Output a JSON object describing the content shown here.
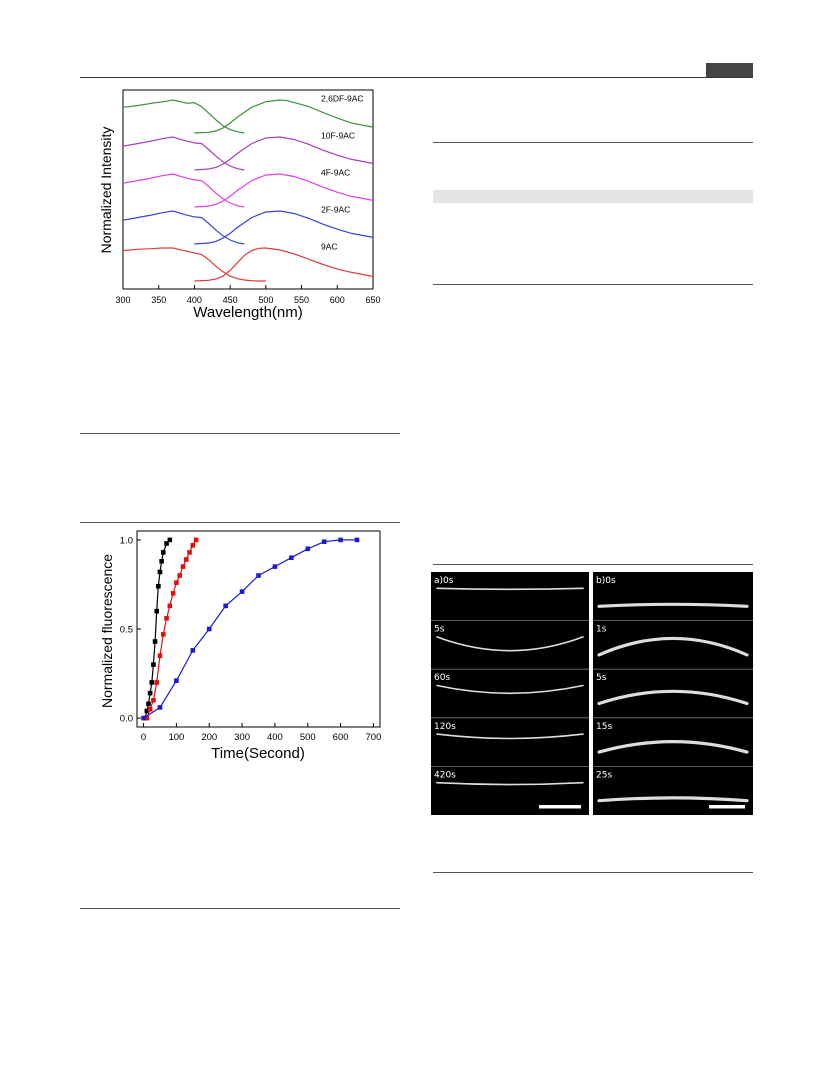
{
  "figure_spectra": {
    "chart_data": {
      "type": "line",
      "xlabel": "Wavelength(nm)",
      "ylabel": "Normalized Intensity",
      "xlim": [
        300,
        650
      ],
      "xticks": [
        300,
        350,
        400,
        450,
        500,
        550,
        600,
        650
      ],
      "grid": false,
      "series": [
        {
          "name": "2,6DF-9AC",
          "color": "#3a8f3a",
          "offset": 4,
          "absorption": {
            "x": [
              300,
              320,
              340,
              360,
              370,
              380,
              390,
              400,
              410,
              420,
              430,
              440,
              450,
              460,
              470
            ],
            "y": [
              0.78,
              0.83,
              0.9,
              0.96,
              1.0,
              0.95,
              0.9,
              0.92,
              0.8,
              0.6,
              0.4,
              0.22,
              0.1,
              0.04,
              0.0
            ]
          },
          "emission": {
            "x": [
              400,
              420,
              430,
              440,
              450,
              460,
              480,
              500,
              520,
              530,
              540,
              560,
              580,
              600,
              620,
              650
            ],
            "y": [
              0.0,
              0.02,
              0.06,
              0.15,
              0.3,
              0.48,
              0.78,
              0.95,
              1.0,
              0.98,
              0.92,
              0.8,
              0.62,
              0.45,
              0.3,
              0.18
            ]
          }
        },
        {
          "name": "10F-9AC",
          "color": "#a63fbf",
          "offset": 3,
          "absorption": {
            "x": [
              300,
              320,
              340,
              355,
              370,
              385,
              400,
              410,
              420,
              430,
              440,
              450,
              460,
              470
            ],
            "y": [
              0.72,
              0.8,
              0.88,
              0.95,
              1.0,
              0.9,
              0.82,
              0.8,
              0.62,
              0.42,
              0.25,
              0.12,
              0.04,
              0.0
            ]
          },
          "emission": {
            "x": [
              400,
              420,
              430,
              440,
              450,
              460,
              480,
              500,
              520,
              540,
              560,
              580,
              600,
              620,
              650
            ],
            "y": [
              0.0,
              0.03,
              0.08,
              0.18,
              0.32,
              0.5,
              0.8,
              0.97,
              1.0,
              0.92,
              0.78,
              0.6,
              0.45,
              0.32,
              0.2
            ]
          }
        },
        {
          "name": "4F-9AC",
          "color": "#e040e6",
          "offset": 2,
          "absorption": {
            "x": [
              300,
              320,
              340,
              355,
              370,
              385,
              400,
              410,
              420,
              430,
              440,
              450,
              460,
              470
            ],
            "y": [
              0.72,
              0.8,
              0.88,
              0.95,
              1.0,
              0.9,
              0.82,
              0.8,
              0.62,
              0.42,
              0.25,
              0.12,
              0.04,
              0.0
            ]
          },
          "emission": {
            "x": [
              400,
              420,
              430,
              440,
              450,
              460,
              480,
              500,
              520,
              540,
              560,
              580,
              600,
              620,
              650
            ],
            "y": [
              0.0,
              0.03,
              0.08,
              0.18,
              0.32,
              0.5,
              0.8,
              0.97,
              1.0,
              0.92,
              0.78,
              0.6,
              0.45,
              0.32,
              0.2
            ]
          }
        },
        {
          "name": "2F-9AC",
          "color": "#3346d6",
          "offset": 1,
          "absorption": {
            "x": [
              300,
              320,
              340,
              355,
              370,
              385,
              400,
              410,
              420,
              430,
              440,
              450,
              460,
              470
            ],
            "y": [
              0.72,
              0.8,
              0.88,
              0.95,
              1.0,
              0.9,
              0.82,
              0.8,
              0.62,
              0.42,
              0.25,
              0.12,
              0.04,
              0.0
            ]
          },
          "emission": {
            "x": [
              400,
              420,
              430,
              440,
              450,
              460,
              480,
              500,
              520,
              540,
              560,
              580,
              600,
              620,
              650
            ],
            "y": [
              0.0,
              0.03,
              0.08,
              0.18,
              0.32,
              0.5,
              0.8,
              0.97,
              1.0,
              0.92,
              0.78,
              0.6,
              0.45,
              0.32,
              0.2
            ]
          }
        },
        {
          "name": "9AC",
          "color": "#e03a3a",
          "offset": 0,
          "absorption": {
            "x": [
              300,
              320,
              340,
              355,
              370,
              385,
              400,
              410,
              420,
              430,
              440,
              450,
              460,
              470,
              480,
              490,
              500
            ],
            "y": [
              0.92,
              0.96,
              0.98,
              1.0,
              1.0,
              0.92,
              0.85,
              0.8,
              0.65,
              0.45,
              0.28,
              0.15,
              0.07,
              0.03,
              0.01,
              0.0,
              0.0
            ]
          },
          "emission": {
            "x": [
              400,
              420,
              430,
              440,
              450,
              460,
              470,
              480,
              490,
              500,
              520,
              540,
              560,
              580,
              600,
              620,
              650
            ],
            "y": [
              0.0,
              0.02,
              0.06,
              0.15,
              0.32,
              0.55,
              0.78,
              0.92,
              0.99,
              1.0,
              0.94,
              0.82,
              0.66,
              0.5,
              0.36,
              0.26,
              0.14
            ]
          }
        }
      ]
    }
  },
  "figure_kinetics": {
    "chart_data": {
      "type": "line",
      "xlabel": "Time(Second)",
      "ylabel": "Normalized fluorescence",
      "xlim": [
        -20,
        720
      ],
      "ylim": [
        -0.05,
        1.05
      ],
      "xticks": [
        0,
        100,
        200,
        300,
        400,
        500,
        600,
        700
      ],
      "yticks": [
        0.0,
        0.5,
        1.0
      ],
      "ytick_labels": [
        "0.0",
        "0.5",
        "1.0"
      ],
      "grid": false,
      "series": [
        {
          "color": "#000000",
          "x": [
            5,
            10,
            15,
            20,
            25,
            30,
            35,
            40,
            45,
            50,
            55,
            60,
            70,
            80
          ],
          "y": [
            0.0,
            0.04,
            0.08,
            0.14,
            0.2,
            0.3,
            0.43,
            0.6,
            0.74,
            0.82,
            0.88,
            0.93,
            0.98,
            1.0
          ]
        },
        {
          "color": "#e01010",
          "x": [
            10,
            20,
            30,
            40,
            50,
            60,
            70,
            80,
            90,
            100,
            110,
            120,
            130,
            140,
            150,
            160
          ],
          "y": [
            0.0,
            0.05,
            0.1,
            0.2,
            0.35,
            0.47,
            0.56,
            0.63,
            0.7,
            0.76,
            0.8,
            0.85,
            0.89,
            0.93,
            0.97,
            1.0
          ]
        },
        {
          "color": "#1a1ad6",
          "x": [
            0,
            50,
            100,
            150,
            200,
            250,
            300,
            350,
            400,
            450,
            500,
            550,
            600,
            650
          ],
          "y": [
            0.0,
            0.06,
            0.21,
            0.38,
            0.5,
            0.63,
            0.71,
            0.8,
            0.85,
            0.9,
            0.95,
            0.99,
            1.0,
            1.0
          ]
        }
      ]
    }
  },
  "figure_micro": {
    "panel_a": {
      "frames": [
        {
          "label": "a)0s",
          "curve": 0.0
        },
        {
          "label": "5s",
          "curve": 0.75
        },
        {
          "label": "60s",
          "curve": 0.4
        },
        {
          "label": "120s",
          "curve": 0.2
        },
        {
          "label": "420s",
          "curve": 0.05
        }
      ]
    },
    "panel_b": {
      "frames": [
        {
          "label": "b)0s",
          "curve": 0.0
        },
        {
          "label": "1s",
          "curve": 0.85
        },
        {
          "label": "5s",
          "curve": 0.6
        },
        {
          "label": "15s",
          "curve": 0.5
        },
        {
          "label": "25s",
          "curve": 0.05
        }
      ]
    }
  }
}
